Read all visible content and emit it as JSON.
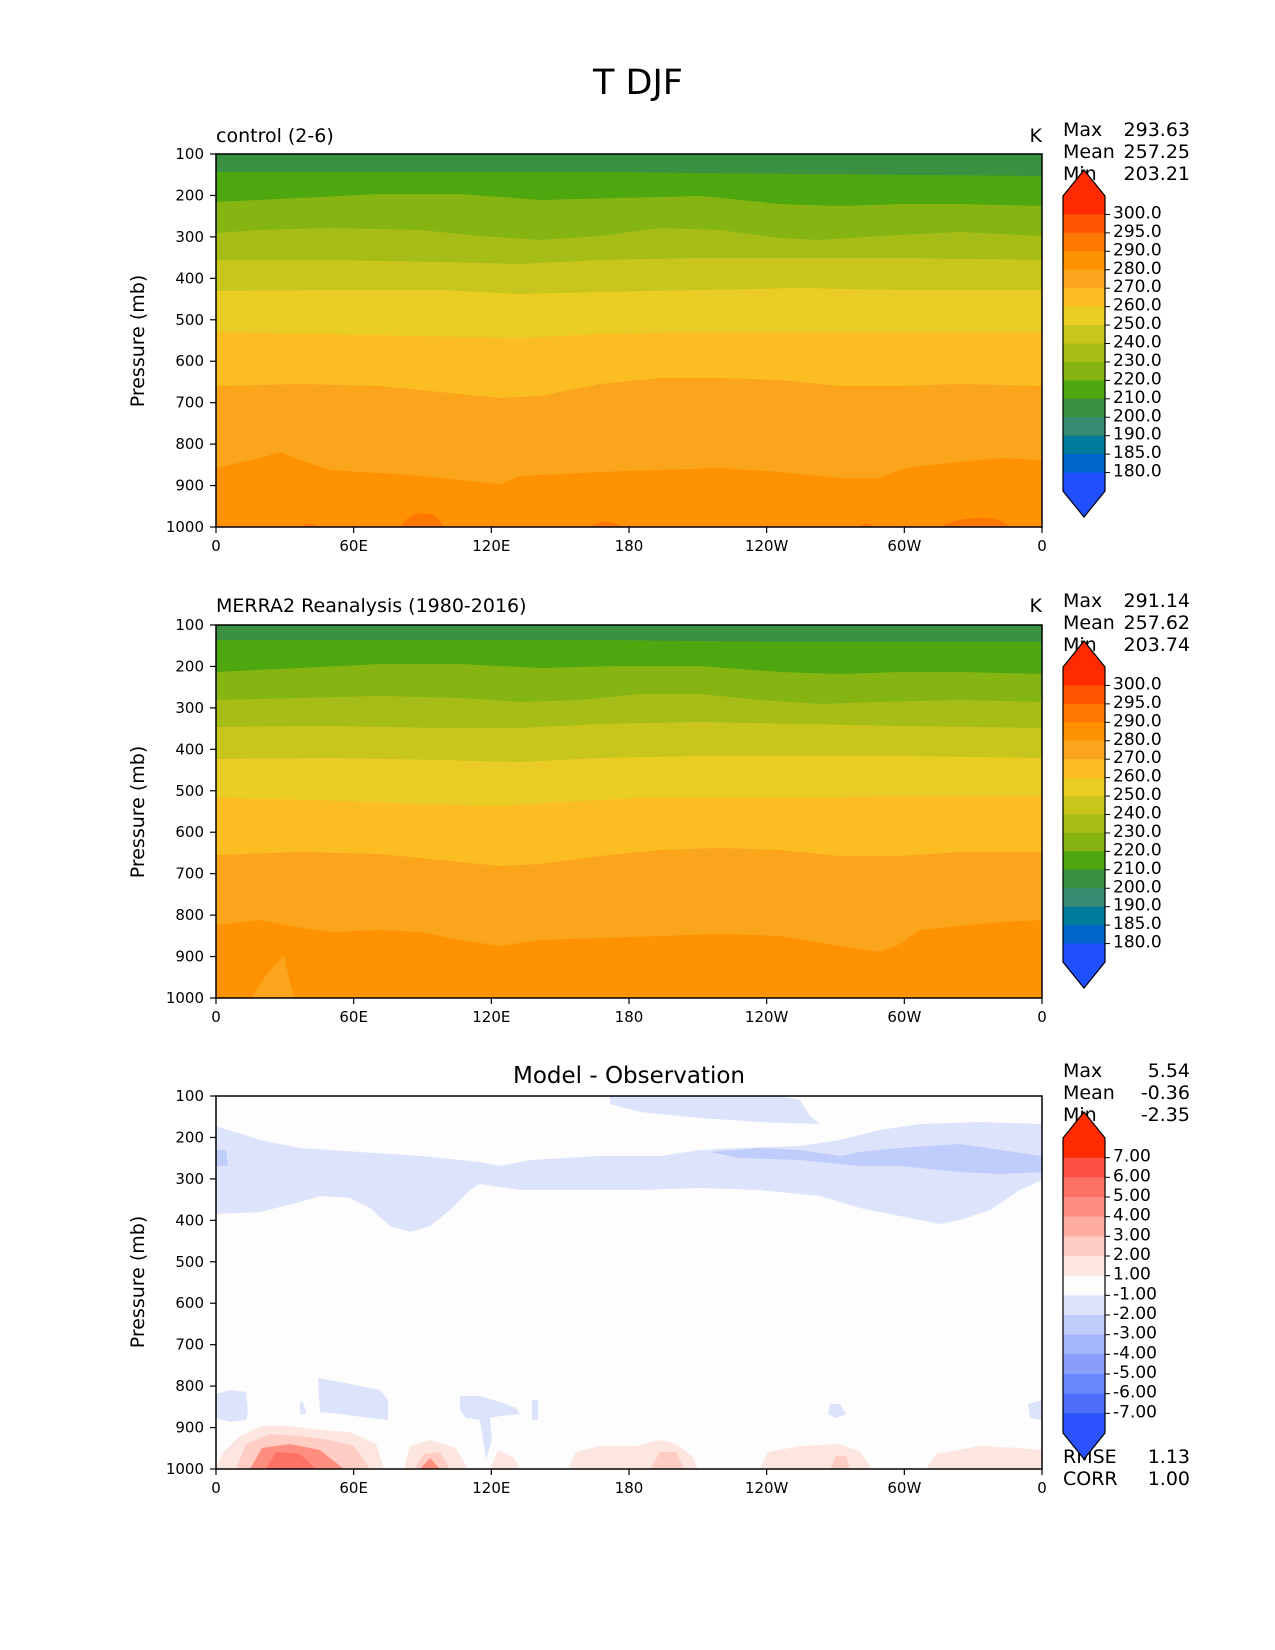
{
  "figure": {
    "title": "T DJF"
  },
  "chart_data": [
    {
      "type": "heatmap",
      "title": "control (2-6)",
      "units": "K",
      "xlabel": "",
      "ylabel": "Pressure (mb)",
      "x_ticks": [
        "0",
        "60E",
        "120E",
        "180",
        "120W",
        "60W",
        "0"
      ],
      "y_ticks": [
        "100",
        "200",
        "300",
        "400",
        "500",
        "600",
        "700",
        "800",
        "900",
        "1000"
      ],
      "ylim": [
        1000,
        100
      ],
      "stats": {
        "max_label": "Max",
        "max": "293.63",
        "mean_label": "Mean",
        "mean": "257.25",
        "min_label": "Min",
        "min": "203.21"
      },
      "colorbar_labels": [
        "300.0",
        "295.0",
        "290.0",
        "280.0",
        "270.0",
        "260.0",
        "250.0",
        "240.0",
        "230.0",
        "220.0",
        "210.0",
        "200.0",
        "190.0",
        "185.0",
        "180.0"
      ],
      "colorbar_colors": [
        "#ff2a00",
        "#ff5500",
        "#fe7700",
        "#ff9200",
        "#fba51d",
        "#fbbd22",
        "#e9cd25",
        "#c8c61d",
        "#a6bd17",
        "#86b513",
        "#4fa70f",
        "#3a9142",
        "#378b72",
        "#007b9c",
        "#0066cc",
        "#1f4fff"
      ],
      "colorbar_over_color": "#ff2a00",
      "colorbar_under_color": "#1f4fff"
    },
    {
      "type": "heatmap",
      "title": "MERRA2 Reanalysis (1980-2016)",
      "units": "K",
      "xlabel": "",
      "ylabel": "Pressure (mb)",
      "x_ticks": [
        "0",
        "60E",
        "120E",
        "180",
        "120W",
        "60W",
        "0"
      ],
      "y_ticks": [
        "100",
        "200",
        "300",
        "400",
        "500",
        "600",
        "700",
        "800",
        "900",
        "1000"
      ],
      "ylim": [
        1000,
        100
      ],
      "stats": {
        "max_label": "Max",
        "max": "291.14",
        "mean_label": "Mean",
        "mean": "257.62",
        "min_label": "Min",
        "min": "203.74"
      },
      "colorbar_labels": [
        "300.0",
        "295.0",
        "290.0",
        "280.0",
        "270.0",
        "260.0",
        "250.0",
        "240.0",
        "230.0",
        "220.0",
        "210.0",
        "200.0",
        "190.0",
        "185.0",
        "180.0"
      ],
      "colorbar_colors": [
        "#ff2a00",
        "#ff5500",
        "#fe7700",
        "#ff9200",
        "#fba51d",
        "#fbbd22",
        "#e9cd25",
        "#c8c61d",
        "#a6bd17",
        "#86b513",
        "#4fa70f",
        "#3a9142",
        "#378b72",
        "#007b9c",
        "#0066cc",
        "#1f4fff"
      ],
      "colorbar_over_color": "#ff2a00",
      "colorbar_under_color": "#1f4fff"
    },
    {
      "type": "heatmap",
      "title": "Model - Observation",
      "units": "",
      "xlabel": "",
      "ylabel": "Pressure (mb)",
      "x_ticks": [
        "0",
        "60E",
        "120E",
        "180",
        "120W",
        "60W",
        "0"
      ],
      "y_ticks": [
        "100",
        "200",
        "300",
        "400",
        "500",
        "600",
        "700",
        "800",
        "900",
        "1000"
      ],
      "ylim": [
        1000,
        100
      ],
      "stats": {
        "max_label": "Max",
        "max": "5.54",
        "mean_label": "Mean",
        "mean": "-0.36",
        "min_label": "Min",
        "min": "-2.35"
      },
      "extra_stats": {
        "rmse_label": "RMSE",
        "rmse": "1.13",
        "corr_label": "CORR",
        "corr": "1.00"
      },
      "colorbar_labels": [
        "7.00",
        "6.00",
        "5.00",
        "4.00",
        "3.00",
        "2.00",
        "1.00",
        "-1.00",
        "-2.00",
        "-3.00",
        "-4.00",
        "-5.00",
        "-6.00",
        "-7.00"
      ],
      "colorbar_colors": [
        "#ff2a00",
        "#fc4f45",
        "#fc7163",
        "#fd8e80",
        "#feaca0",
        "#ffcdc3",
        "#fde6e0",
        "#fdfdfd",
        "#dce3fb",
        "#c0ccfb",
        "#a3b6fa",
        "#889efa",
        "#6a86fb",
        "#4e6efa",
        "#2b52fc"
      ],
      "colorbar_over_color": "#ff2a00",
      "colorbar_under_color": "#2b52fc"
    }
  ]
}
